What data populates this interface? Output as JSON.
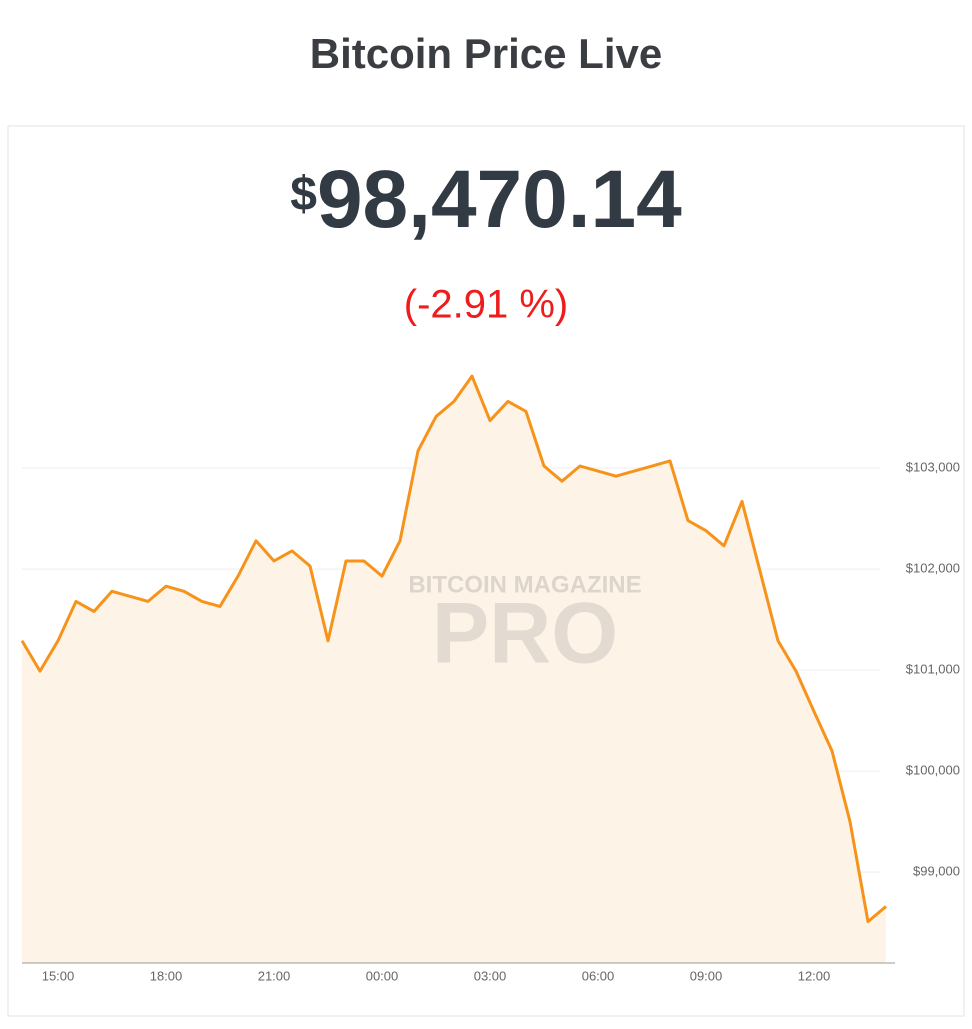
{
  "header": {
    "title": "Bitcoin Price Live"
  },
  "ticker": {
    "currency": "$",
    "price": "98,470.14",
    "change": "(-2.91 %)"
  },
  "watermark": {
    "top": "BITCOIN MAGAZINE",
    "brand": "PRO"
  },
  "chart_data": {
    "type": "area",
    "color": "#f7931a",
    "fill": "#fdf3e7",
    "grid": true,
    "categories": [
      null,
      null,
      "15:00",
      null,
      null,
      null,
      null,
      null,
      "18:00",
      null,
      null,
      null,
      null,
      null,
      "21:00",
      null,
      null,
      null,
      null,
      null,
      "00:00",
      null,
      null,
      null,
      null,
      null,
      "03:00",
      null,
      null,
      null,
      null,
      null,
      "06:00",
      null,
      null,
      null,
      null,
      null,
      "09:00",
      null,
      null,
      null,
      null,
      null,
      "12:00",
      null,
      null,
      null,
      null
    ],
    "values": [
      101290,
      100990,
      101290,
      101680,
      101580,
      101780,
      101730,
      101680,
      101830,
      101780,
      101680,
      101630,
      101930,
      102280,
      102080,
      102180,
      102030,
      101290,
      102080,
      102080,
      101930,
      102280,
      103170,
      103510,
      103660,
      103910,
      103470,
      103660,
      103560,
      103020,
      102870,
      103020,
      102970,
      102920,
      102970,
      103020,
      103070,
      102480,
      102380,
      102230,
      102670,
      101980,
      101290,
      100990,
      100590,
      100200,
      99500,
      98510,
      98660
    ],
    "ylim": [
      98100,
      104050
    ],
    "yticks": [
      {
        "value": 99000,
        "label": "$99,000"
      },
      {
        "value": 100000,
        "label": "$100,000"
      },
      {
        "value": 101000,
        "label": "$101,000"
      },
      {
        "value": 102000,
        "label": "$102,000"
      },
      {
        "value": 103000,
        "label": "$103,000"
      }
    ]
  }
}
